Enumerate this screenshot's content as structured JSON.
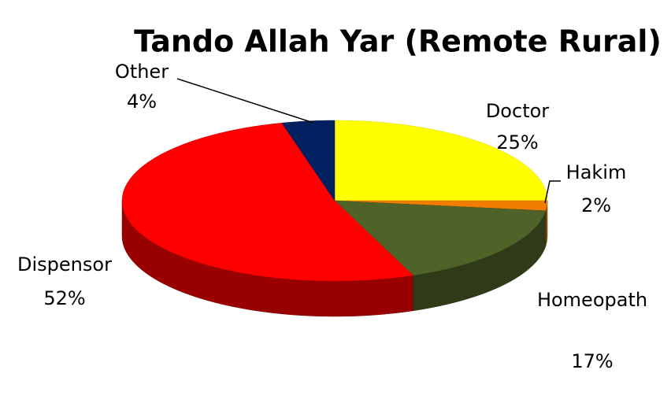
{
  "chart_data": {
    "type": "pie",
    "title": "Tando Allah Yar (Remote Rural)",
    "categories": [
      "Doctor",
      "Hakim",
      "Homeopath",
      "Dispensor",
      "Other"
    ],
    "values": [
      25,
      2,
      17,
      52,
      4
    ],
    "value_labels": [
      "25%",
      "2%",
      "17%",
      "52%",
      "4%"
    ],
    "colors": [
      "#ffff00",
      "#f07d00",
      "#4f6228",
      "#ff0000",
      "#002060"
    ]
  }
}
